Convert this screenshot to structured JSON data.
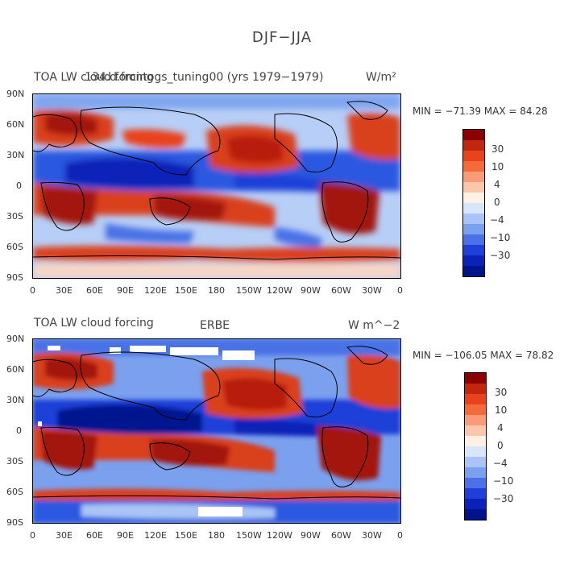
{
  "figure": {
    "title": "DJF−JJA"
  },
  "axes": {
    "lat_labels": [
      "90N",
      "60N",
      "30N",
      "0",
      "30S",
      "60S",
      "90S"
    ],
    "lon_labels": [
      "0",
      "30E",
      "60E",
      "90E",
      "120E",
      "150E",
      "180",
      "150W",
      "120W",
      "90W",
      "60W",
      "30W",
      "0"
    ]
  },
  "panels": [
    {
      "left_title": "TOA LW cloud forcing",
      "overlay_title": "134.d.frontogs_tuning00 (yrs 1979−1979)",
      "units": "W/m²",
      "stats": "MIN = −71.39 MAX =  84.28",
      "colorbar_labels": [
        "30",
        "10",
        "4",
        "0",
        "−4",
        "−10",
        "−30"
      ]
    },
    {
      "left_title": "TOA LW cloud forcing",
      "center_title": "ERBE",
      "units": "W m^−2",
      "stats": "MIN = −106.05 MAX =  78.82",
      "colorbar_labels": [
        "30",
        "10",
        "4",
        "0",
        "−4",
        "−10",
        "−30"
      ]
    }
  ],
  "colorbar_colors": [
    "#8b0000",
    "#c1270e",
    "#e8431a",
    "#f46a3b",
    "#f89b76",
    "#fcc7ad",
    "#fff0e6",
    "#d8e6fb",
    "#a9c4f5",
    "#7aa0ee",
    "#4a72e6",
    "#1f3fd8",
    "#0b22b8",
    "#00138a"
  ],
  "colors": {
    "positive_strong": "#a3140f",
    "positive": "#d9401a",
    "neutral": "#f2f2f2",
    "negative": "#2a58e0",
    "negative_strong": "#06178f",
    "coastline": "#000000"
  }
}
